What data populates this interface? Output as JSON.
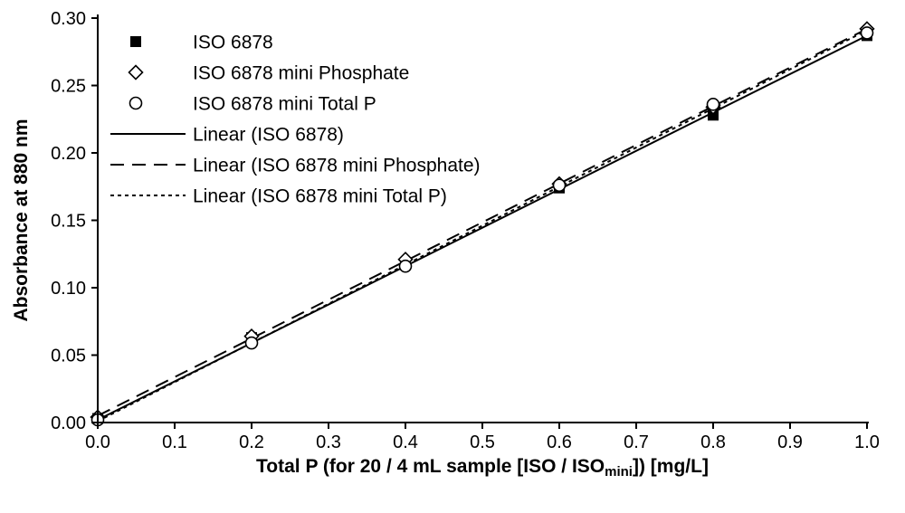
{
  "chart_data": {
    "type": "scatter",
    "title": "",
    "ylabel": "Absorbance at 880 nm",
    "xlabel_parts": {
      "pre": "Total P (for 20 / 4 mL sample [ISO / ISO",
      "sub": "mini",
      "post": "]) [mg/L]"
    },
    "xlim": [
      0.0,
      1.0
    ],
    "ylim": [
      0.0,
      0.3
    ],
    "xticks": [
      0.0,
      0.1,
      0.2,
      0.3,
      0.4,
      0.5,
      0.6,
      0.7,
      0.8,
      0.9,
      1.0
    ],
    "xtick_labels": [
      "0.0",
      "0.1",
      "0.2",
      "0.3",
      "0.4",
      "0.5",
      "0.6",
      "0.7",
      "0.8",
      "0.9",
      "1.0"
    ],
    "yticks": [
      0.0,
      0.05,
      0.1,
      0.15,
      0.2,
      0.25,
      0.3
    ],
    "ytick_labels": [
      "0.00",
      "0.05",
      "0.10",
      "0.15",
      "0.20",
      "0.25",
      "0.30"
    ],
    "grid": false,
    "legend_position": "top-left-inside",
    "x": [
      0.0,
      0.2,
      0.4,
      0.6,
      0.8,
      1.0
    ],
    "series": [
      {
        "name": "ISO 6878",
        "marker": "filled-square",
        "color": "#000000",
        "values": [
          0.003,
          0.063,
          0.117,
          0.174,
          0.228,
          0.287
        ]
      },
      {
        "name": "ISO 6878 mini Phosphate",
        "marker": "open-diamond",
        "color": "#000000",
        "values": [
          0.004,
          0.064,
          0.121,
          0.177,
          0.234,
          0.292
        ]
      },
      {
        "name": "ISO 6878 mini Total P",
        "marker": "open-circle",
        "color": "#000000",
        "values": [
          0.002,
          0.059,
          0.116,
          0.176,
          0.236,
          0.289
        ]
      }
    ],
    "fits": [
      {
        "name": "Linear (ISO 6878)",
        "dash": "solid",
        "slope": 0.285,
        "intercept": 0.002
      },
      {
        "name": "Linear (ISO 6878 mini Phosphate)",
        "dash": "long-dash",
        "slope": 0.287,
        "intercept": 0.005
      },
      {
        "name": "Linear (ISO 6878 mini Total P)",
        "dash": "short-dash",
        "slope": 0.29,
        "intercept": 0.001
      }
    ],
    "axis_color": "#000000",
    "marker_color": "#000000"
  }
}
